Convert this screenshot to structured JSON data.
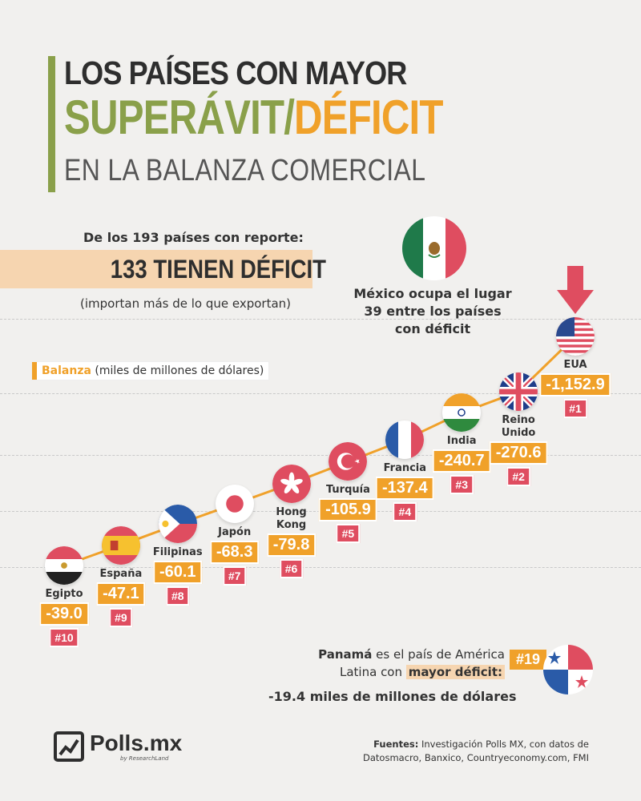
{
  "title": {
    "line1": "LOS PAÍSES CON MAYOR",
    "line2_a": "SUPERÁVIT",
    "line2_sep": "/",
    "line2_b": "DÉFICIT",
    "line3": "EN LA BALANZA COMERCIAL"
  },
  "report": {
    "line1": "De los 193 países con reporte:",
    "line2": "133 TIENEN DÉFICIT",
    "line3": "(importan más de lo que exportan)"
  },
  "mexico": {
    "icon": "mexico-flag-icon",
    "line1": "México ocupa el lugar",
    "line2": "39 entre los países",
    "line3": "con déficit"
  },
  "legend": {
    "bold": "Balanza",
    "rest": " (miles de millones de dólares)"
  },
  "colors": {
    "green": "#8aa04a",
    "orange": "#f0a12a",
    "red": "#df4d60",
    "background": "#f1f0ee"
  },
  "chart_data": {
    "type": "line",
    "series": [
      {
        "x": [
          "Egipto",
          "España",
          "Filipinas",
          "Japón",
          "Hong Kong",
          "Turquía",
          "Francia",
          "India",
          "Reino Unido",
          "EUA"
        ],
        "values": [
          -39.0,
          -47.1,
          -60.1,
          -68.3,
          -79.8,
          -105.9,
          -137.4,
          -240.7,
          -270.6,
          -1152.9
        ],
        "value_labels": [
          "-39.0",
          "-47.1",
          "-60.1",
          "-68.3",
          "-79.8",
          "-105.9",
          "-137.4",
          "-240.7",
          "-270.6",
          "-1,152.9"
        ],
        "ranks": [
          "#10",
          "#9",
          "#8",
          "#7",
          "#6",
          "#5",
          "#4",
          "#3",
          "#2",
          "#1"
        ]
      }
    ],
    "xlabel": "",
    "ylabel": "Balanza (miles de millones de dólares)",
    "grid": true
  },
  "countries": [
    {
      "name_lines": [
        "Egipto"
      ],
      "flag": "egypt-flag-icon"
    },
    {
      "name_lines": [
        "España"
      ],
      "flag": "spain-flag-icon"
    },
    {
      "name_lines": [
        "Filipinas"
      ],
      "flag": "philippines-flag-icon"
    },
    {
      "name_lines": [
        "Japón"
      ],
      "flag": "japan-flag-icon"
    },
    {
      "name_lines": [
        "Hong",
        "Kong"
      ],
      "flag": "hong-kong-flag-icon"
    },
    {
      "name_lines": [
        "Turquía"
      ],
      "flag": "turkey-flag-icon"
    },
    {
      "name_lines": [
        "Francia"
      ],
      "flag": "france-flag-icon"
    },
    {
      "name_lines": [
        "India"
      ],
      "flag": "india-flag-icon"
    },
    {
      "name_lines": [
        "Reino",
        "Unido"
      ],
      "flag": "uk-flag-icon"
    },
    {
      "name_lines": [
        "EUA"
      ],
      "flag": "usa-flag-icon"
    }
  ],
  "panama": {
    "bold": "Panamá",
    "line1_rest": " es el país de América",
    "line2_pre": "Latina con ",
    "line2_hl": "mayor déficit:",
    "rank": "#19",
    "value": "-19.4 miles de millones de dólares",
    "flag": "panama-flag-icon"
  },
  "footer": {
    "logo": "Polls.mx",
    "logo_sub": "by ResearchLand",
    "sources_bold": "Fuentes:",
    "sources_line1": " Investigación Polls MX, con datos de",
    "sources_line2": "Datosmacro, Banxico, Countryeconomy.com, FMI"
  }
}
